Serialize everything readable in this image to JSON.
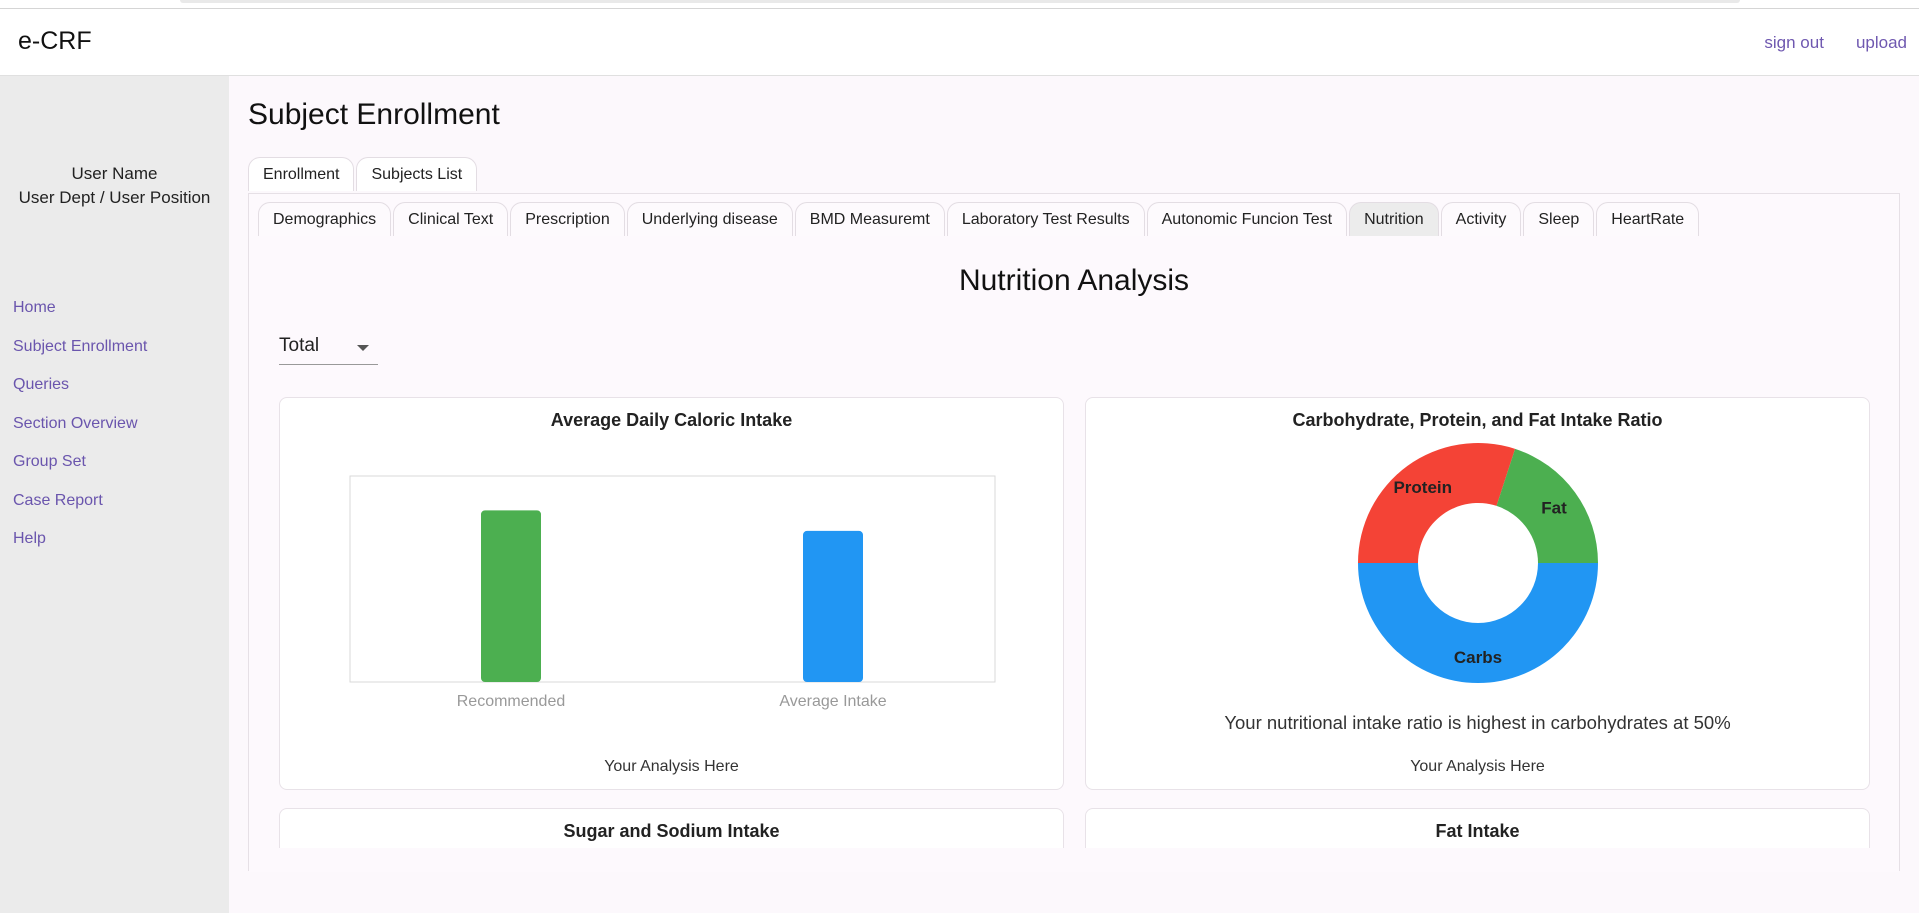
{
  "app": {
    "brand": "e-CRF",
    "links": {
      "sign_out": "sign out",
      "upload": "upload"
    }
  },
  "sidebar": {
    "user_name": "User Name",
    "user_dept": "User Dept / User Position",
    "nav": [
      "Home",
      "Subject Enrollment",
      "Queries",
      "Section Overview",
      "Group Set",
      "Case Report",
      "Help"
    ]
  },
  "page": {
    "title": "Subject Enrollment",
    "outer_tabs": [
      "Enrollment",
      "Subjects List"
    ],
    "inner_tabs": [
      "Demographics",
      "Clinical Text",
      "Prescription",
      "Underlying disease",
      "BMD Measuremt",
      "Laboratory Test Results",
      "Autonomic Funcion Test",
      "Nutrition",
      "Activity",
      "Sleep",
      "HeartRate"
    ],
    "active_inner_tab": "Nutrition",
    "section_title": "Nutrition Analysis",
    "select_value": "Total"
  },
  "cards": {
    "caloric": {
      "title": "Average Daily Caloric Intake",
      "footer": "Your Analysis Here"
    },
    "ratio": {
      "title": "Carbohydrate, Protein, and Fat Intake Ratio",
      "summary": "Your nutritional intake ratio is highest in carbohydrates at 50%",
      "footer": "Your Analysis Here"
    },
    "sugar": {
      "title": "Sugar and Sodium Intake"
    },
    "fat": {
      "title": "Fat Intake"
    }
  },
  "colors": {
    "green": "#4caf50",
    "blue": "#2196f3",
    "red": "#f44336",
    "accent_link": "#6f58b0"
  },
  "chart_data": [
    {
      "type": "bar",
      "title": "Average Daily Caloric Intake",
      "categories": [
        "Recommended",
        "Average Intake"
      ],
      "values": [
        2500,
        2200
      ],
      "ylim": [
        0,
        3000
      ],
      "colors": [
        "#4caf50",
        "#2196f3"
      ]
    },
    {
      "type": "pie",
      "title": "Carbohydrate, Protein, and Fat Intake Ratio",
      "labels": [
        "Carbs",
        "Protein",
        "Fat"
      ],
      "values": [
        50,
        30,
        20
      ],
      "colors": [
        "#2196f3",
        "#f44336",
        "#4caf50"
      ]
    }
  ]
}
